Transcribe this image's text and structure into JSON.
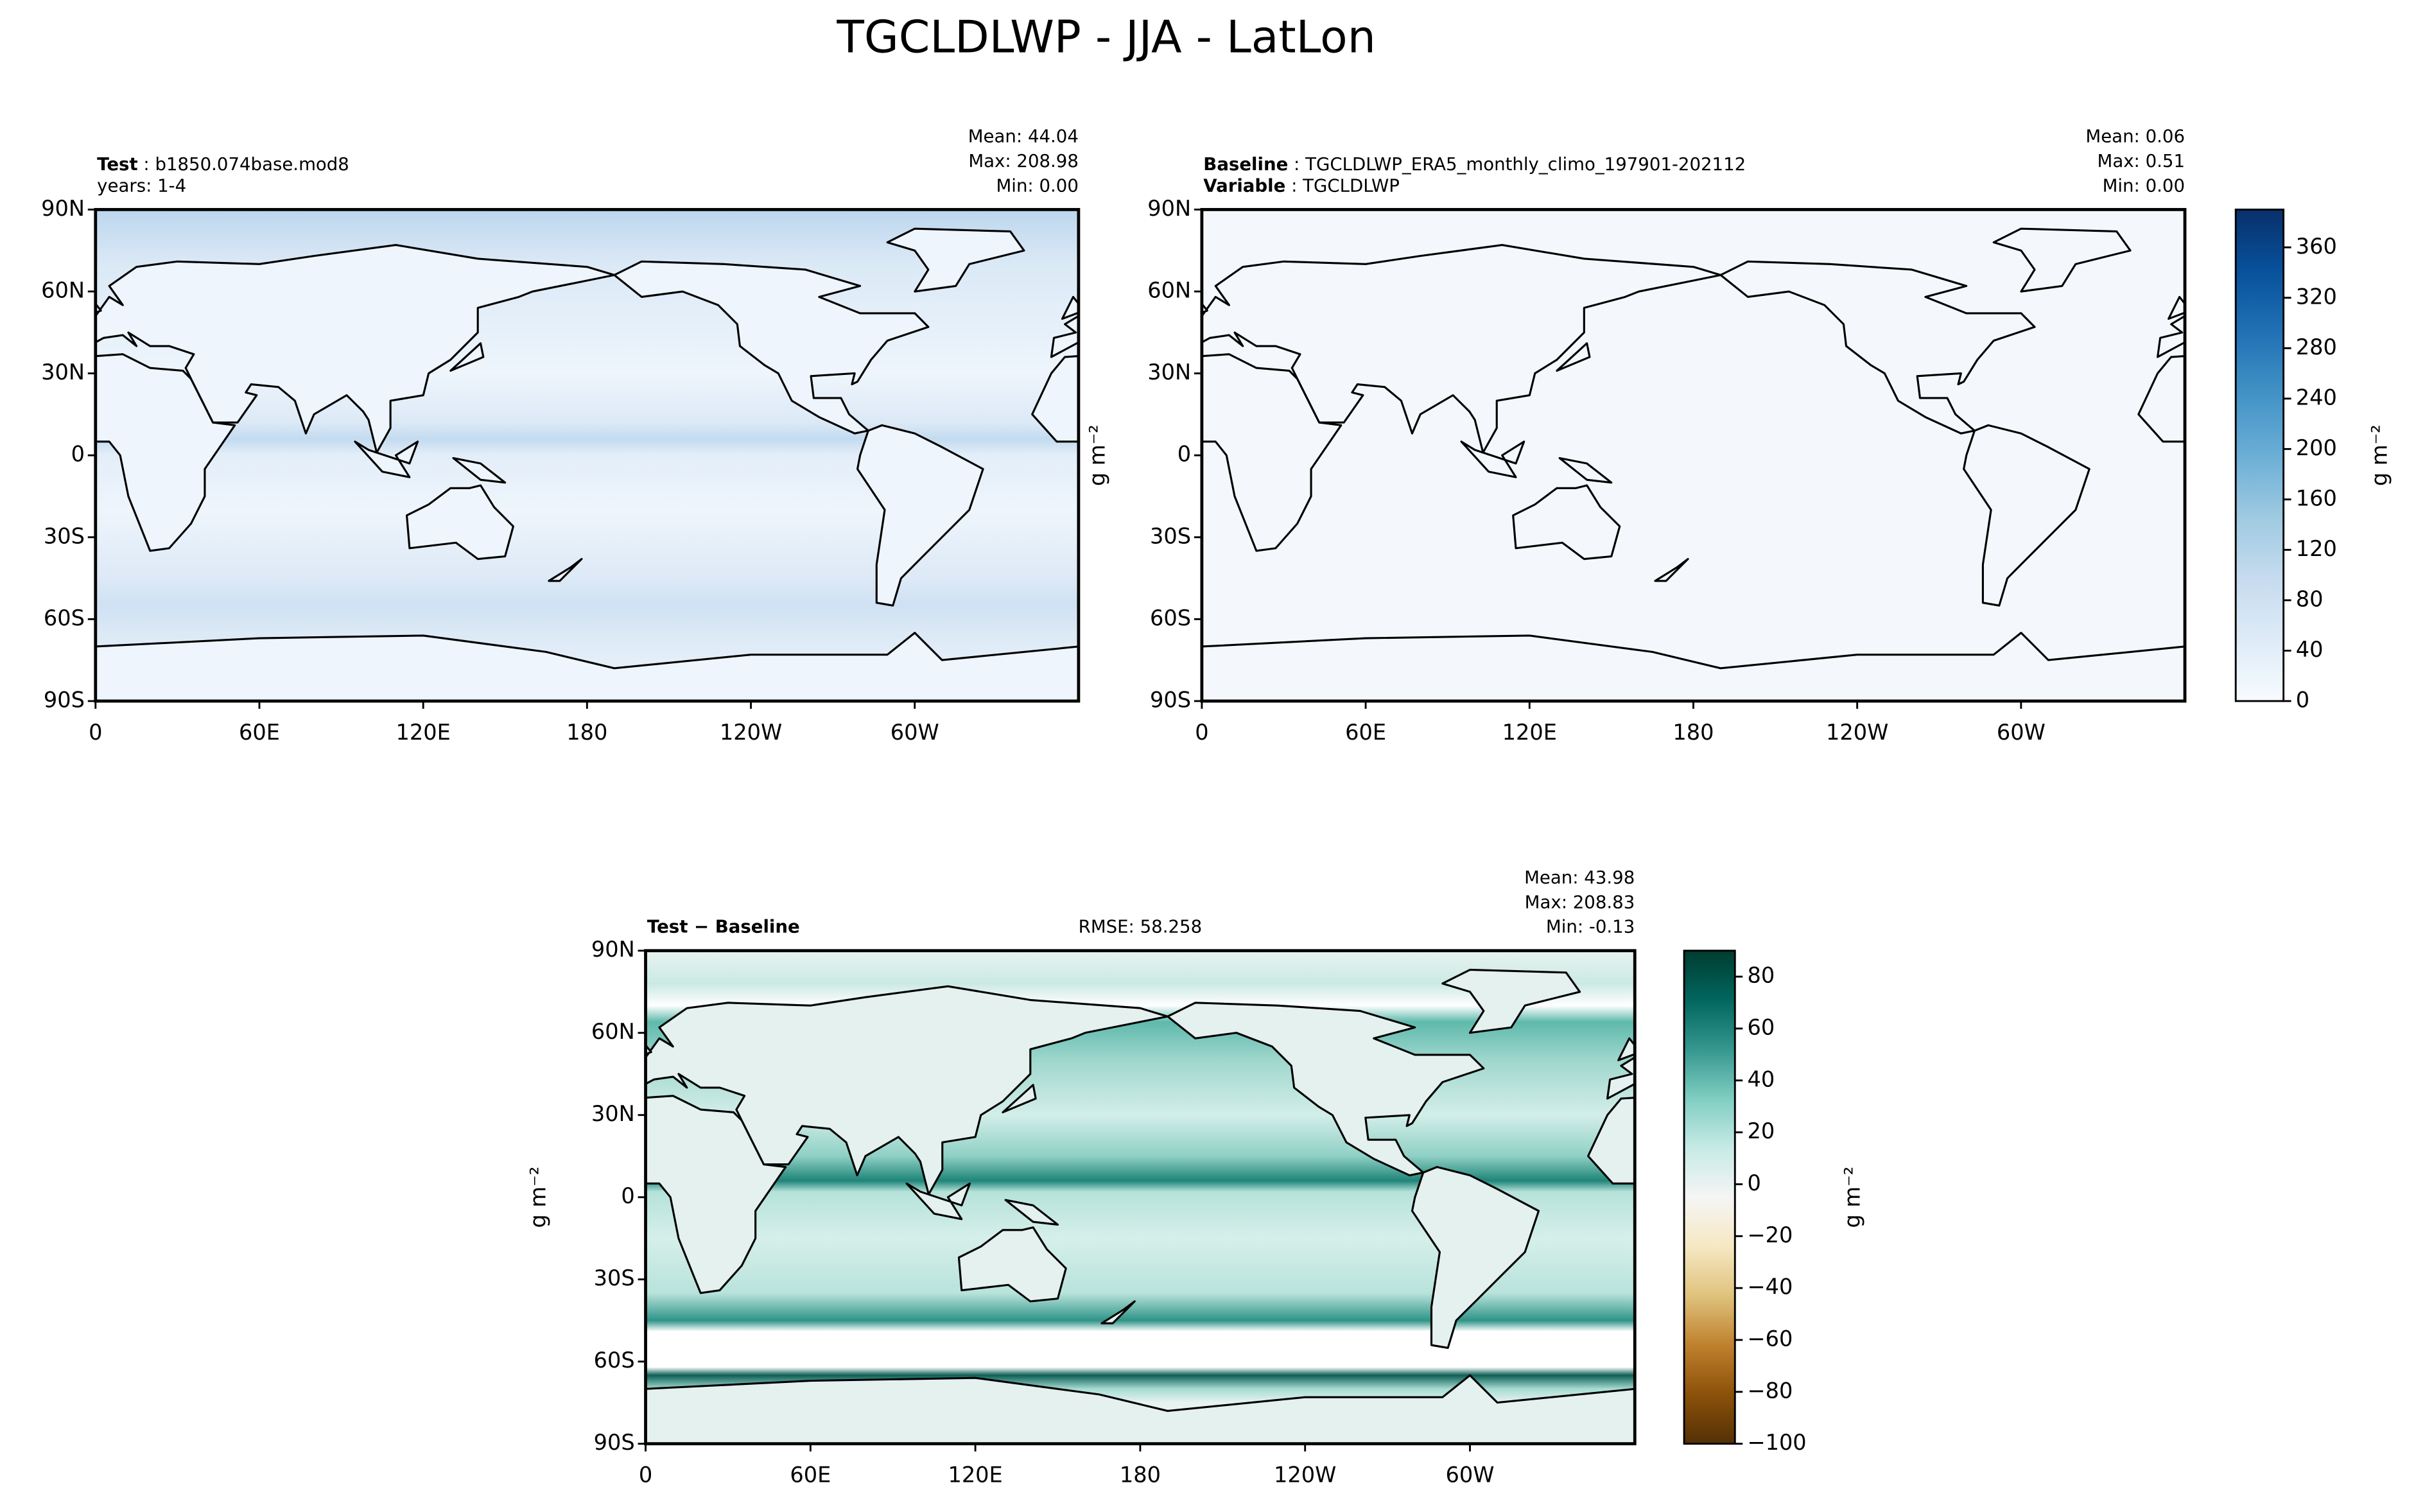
{
  "title": "TGCLDLWP - JJA - LatLon",
  "chart_data": [
    {
      "type": "map",
      "header_lines": [
        [
          {
            "text": "Test",
            "bold": true
          },
          {
            "text": " : b1850.074base.mod8"
          }
        ],
        [
          {
            "text": "years: 1-4"
          }
        ]
      ],
      "stats": [
        "Mean: 44.04",
        "Max: 208.98",
        "Min:  0.00"
      ],
      "xlim": [
        0,
        360
      ],
      "xticks": [
        0,
        {
          "value": 60,
          "label": "60E"
        },
        {
          "value": 120,
          "label": "120E"
        },
        180,
        {
          "value": 240,
          "label": "120W"
        },
        {
          "value": 300,
          "label": "60W"
        }
      ],
      "ylim": [
        -90,
        90
      ],
      "yticks": [
        {
          "value": -90,
          "label": "90S"
        },
        {
          "value": -60,
          "label": "60S"
        },
        {
          "value": -30,
          "label": "30S"
        },
        0,
        {
          "value": 30,
          "label": "30N"
        },
        {
          "value": 60,
          "label": "60N"
        },
        {
          "value": 90,
          "label": "90N"
        }
      ]
    },
    {
      "type": "map",
      "header_lines": [
        [
          {
            "text": "Baseline",
            "bold": true
          },
          {
            "text": " : TGCLDLWP_ERA5_monthly_climo_197901-202112"
          }
        ],
        [
          {
            "text": "Variable",
            "bold": true
          },
          {
            "text": " : TGCLDLWP"
          }
        ]
      ],
      "stats": [
        "Mean:  0.06",
        "Max:  0.51",
        "Min:  0.00"
      ],
      "ylabel": "g m⁻²",
      "xlim": [
        0,
        360
      ],
      "xticks": [
        0,
        {
          "value": 60,
          "label": "60E"
        },
        {
          "value": 120,
          "label": "120E"
        },
        180,
        {
          "value": 240,
          "label": "120W"
        },
        {
          "value": 300,
          "label": "60W"
        }
      ],
      "ylim": [
        -90,
        90
      ],
      "yticks": [
        {
          "value": -90,
          "label": "90S"
        },
        {
          "value": -60,
          "label": "60S"
        },
        {
          "value": -30,
          "label": "30S"
        },
        0,
        {
          "value": 30,
          "label": "30N"
        },
        {
          "value": 60,
          "label": "60N"
        },
        {
          "value": 90,
          "label": "90N"
        }
      ],
      "colorbar": {
        "label": "g m⁻²",
        "lim": [
          0,
          390
        ],
        "ticks": [
          0,
          40,
          80,
          120,
          160,
          200,
          240,
          280,
          320,
          360
        ],
        "cmap": [
          "#f7fbff",
          "#deebf7",
          "#c6dbef",
          "#9ecae1",
          "#6baed6",
          "#4292c6",
          "#2171b5",
          "#08519c",
          "#08306b"
        ]
      }
    },
    {
      "type": "map",
      "header_lines": [
        [
          {
            "text": "Test − Baseline",
            "bold": true
          }
        ]
      ],
      "center_text": "RMSE: 58.258",
      "stats": [
        "Mean: 43.98",
        "Max: 208.83",
        "Min: -0.13"
      ],
      "ylabel": "g m⁻²",
      "xlim": [
        0,
        360
      ],
      "xticks": [
        0,
        {
          "value": 60,
          "label": "60E"
        },
        {
          "value": 120,
          "label": "120E"
        },
        180,
        {
          "value": 240,
          "label": "120W"
        },
        {
          "value": 300,
          "label": "60W"
        }
      ],
      "ylim": [
        -90,
        90
      ],
      "yticks": [
        {
          "value": -90,
          "label": "90S"
        },
        {
          "value": -60,
          "label": "60S"
        },
        {
          "value": -30,
          "label": "30S"
        },
        0,
        {
          "value": 30,
          "label": "30N"
        },
        {
          "value": 60,
          "label": "60N"
        },
        {
          "value": 90,
          "label": "90N"
        }
      ],
      "colorbar": {
        "label": "g m⁻²",
        "lim": [
          -100,
          90
        ],
        "ticks": [
          {
            "value": -100,
            "label": "−100"
          },
          {
            "value": -80,
            "label": "−80"
          },
          {
            "value": -60,
            "label": "−60"
          },
          {
            "value": -40,
            "label": "−40"
          },
          {
            "value": -20,
            "label": "−20"
          },
          0,
          20,
          40,
          60,
          80
        ],
        "cmap": [
          "#543005",
          "#8c510a",
          "#bf812d",
          "#dfc27d",
          "#f6e8c3",
          "#f5f5f5",
          "#c7eae5",
          "#80cdc1",
          "#35978f",
          "#01665e",
          "#003c30"
        ]
      }
    }
  ]
}
